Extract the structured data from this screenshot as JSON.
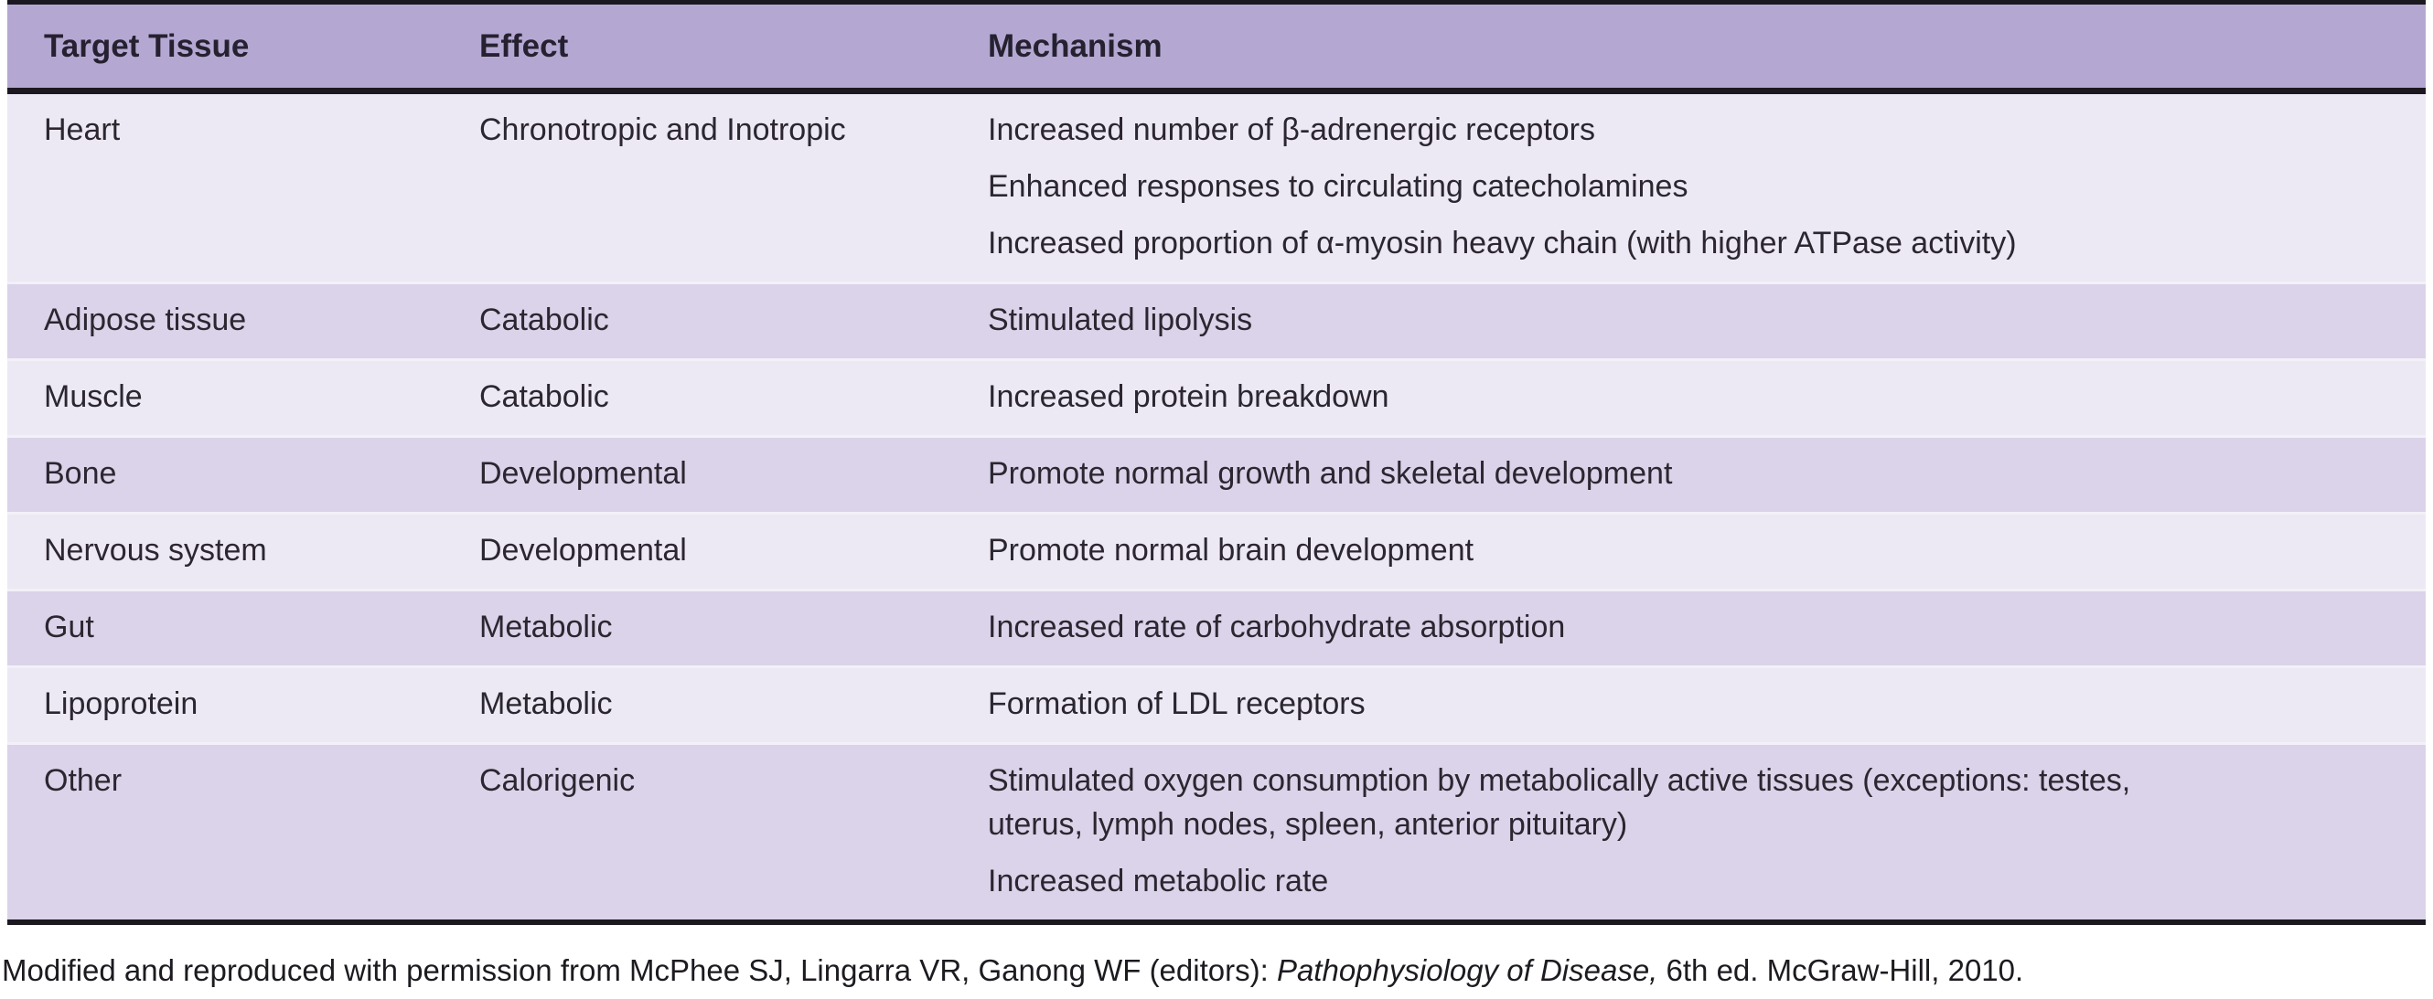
{
  "colors": {
    "header_bg": "#b4a8d3",
    "row_light": "#ede9f4",
    "row_dark": "#dad3e9",
    "line_dark": "#1c1820",
    "text": "#2b2630"
  },
  "table": {
    "columns": [
      "Target Tissue",
      "Effect",
      "Mechanism"
    ],
    "rows": [
      {
        "tissue": "Heart",
        "effect": "Chronotropic and Inotropic",
        "mechanisms": [
          [
            "Increased number of β-adrenergic receptors"
          ],
          [
            "Enhanced responses to circulating catecholamines"
          ],
          [
            "Increased proportion of α-myosin heavy chain (with higher ATPase activity)"
          ]
        ]
      },
      {
        "tissue": "Adipose tissue",
        "effect": "Catabolic",
        "mechanisms": [
          [
            "Stimulated lipolysis"
          ]
        ]
      },
      {
        "tissue": "Muscle",
        "effect": "Catabolic",
        "mechanisms": [
          [
            "Increased protein breakdown"
          ]
        ]
      },
      {
        "tissue": "Bone",
        "effect": "Developmental",
        "mechanisms": [
          [
            "Promote normal growth and skeletal development"
          ]
        ]
      },
      {
        "tissue": "Nervous system",
        "effect": "Developmental",
        "mechanisms": [
          [
            "Promote normal brain development"
          ]
        ]
      },
      {
        "tissue": "Gut",
        "effect": "Metabolic",
        "mechanisms": [
          [
            "Increased rate of carbohydrate absorption"
          ]
        ]
      },
      {
        "tissue": "Lipoprotein",
        "effect": "Metabolic",
        "mechanisms": [
          [
            "Formation of LDL receptors"
          ]
        ]
      },
      {
        "tissue": "Other",
        "effect": "Calorigenic",
        "mechanisms": [
          [
            "Stimulated oxygen consumption by metabolically active tissues (exceptions: testes,",
            "uterus, lymph nodes, spleen, anterior pituitary)"
          ],
          [
            "Increased metabolic rate"
          ]
        ]
      }
    ]
  },
  "footer": {
    "credit_prefix": "Modified and reproduced with permission from McPhee SJ, Lingarra VR, Ganong WF (editors): ",
    "credit_italic": "Pathophysiology of Disease,",
    "credit_suffix": " 6th ed. McGraw-Hill, 2010."
  }
}
